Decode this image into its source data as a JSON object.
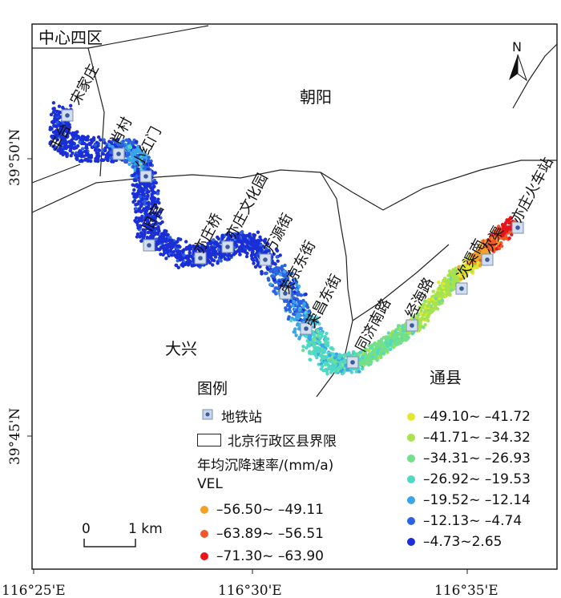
{
  "districts": {
    "center": "中心四区",
    "chaoyang": "朝阳",
    "daxing": "大兴",
    "tongxian": "通县"
  },
  "north_arrow": "N",
  "lat_labels": [
    "39°50'N",
    "39°45'N"
  ],
  "lon_labels": [
    "116°25'E",
    "116°30'E",
    "116°35'E"
  ],
  "stations": [
    "宋家庄",
    "肖村",
    "小红门",
    "旧宫",
    "亦庄桥",
    "亦庄文化园",
    "万源街",
    "荣京东街",
    "荣昌东街",
    "同济南路",
    "经海路",
    "次渠南",
    "次渠",
    "亦庄火车站",
    "丰台"
  ],
  "legend": {
    "title": "图例",
    "station_label": "地铁站",
    "boundary_label": "北京行政区县界限",
    "rate_label": "年均沉降速率/(mm/a)",
    "vel_label": "VEL",
    "classes": [
      {
        "range": "–71.30~ –63.90",
        "color": "#e8141c"
      },
      {
        "range": "–63.89~ –56.51",
        "color": "#f0582a"
      },
      {
        "range": "–56.50~ –49.11",
        "color": "#f5a023"
      },
      {
        "range": "–49.10~ –41.72",
        "color": "#e2e830"
      },
      {
        "range": "–41.71~ –34.32",
        "color": "#a8e34c"
      },
      {
        "range": "–34.31~ –26.93",
        "color": "#72e08a"
      },
      {
        "range": "–26.92~ –19.53",
        "color": "#4fd8c4"
      },
      {
        "range": "–19.52~ –12.14",
        "color": "#3aa6ea"
      },
      {
        "range": "–12.13~ –4.74",
        "color": "#2c62e0"
      },
      {
        "range": "–4.73~2.65",
        "color": "#1b2fd6"
      }
    ]
  },
  "scale": {
    "zero": "0",
    "label": "1 km"
  }
}
